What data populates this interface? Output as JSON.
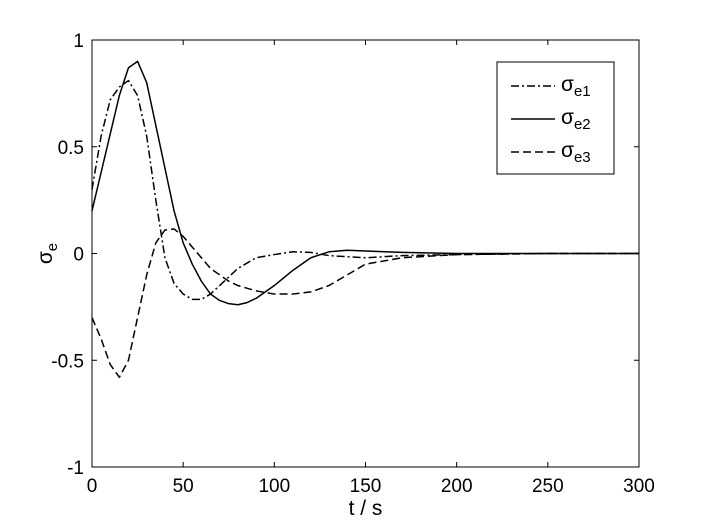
{
  "chart_data": {
    "type": "line",
    "xlabel": "t / s",
    "ylabel": {
      "symbol": "σ",
      "subscript": "e"
    },
    "xlim": [
      0,
      300
    ],
    "ylim": [
      -1,
      1
    ],
    "xticks": [
      0,
      50,
      100,
      150,
      200,
      250,
      300
    ],
    "yticks": [
      -1,
      -0.5,
      0,
      0.5,
      1
    ],
    "xtick_labels": [
      "0",
      "50",
      "100",
      "150",
      "200",
      "250",
      "300"
    ],
    "ytick_labels": [
      "-1",
      "-0.5",
      "0",
      "0.5",
      "1"
    ],
    "grid": false,
    "legend_position": "top-right",
    "series": [
      {
        "name": "σe1",
        "symbol": "σ",
        "subscript": "e1",
        "style": "dashdot",
        "x": [
          0,
          5,
          10,
          15,
          20,
          25,
          30,
          35,
          40,
          45,
          50,
          55,
          60,
          65,
          70,
          75,
          80,
          90,
          100,
          110,
          120,
          130,
          140,
          150,
          170,
          200,
          250,
          300
        ],
        "y": [
          0.3,
          0.55,
          0.72,
          0.78,
          0.81,
          0.74,
          0.55,
          0.25,
          -0.02,
          -0.14,
          -0.19,
          -0.215,
          -0.215,
          -0.19,
          -0.15,
          -0.11,
          -0.07,
          -0.02,
          -0.005,
          0.008,
          0.005,
          -0.01,
          -0.015,
          -0.02,
          -0.01,
          -0.005,
          0.0,
          0.0
        ]
      },
      {
        "name": "σe2",
        "symbol": "σ",
        "subscript": "e2",
        "style": "solid",
        "x": [
          0,
          5,
          10,
          15,
          20,
          25,
          30,
          35,
          40,
          45,
          50,
          55,
          60,
          65,
          70,
          75,
          80,
          85,
          90,
          100,
          110,
          120,
          130,
          140,
          150,
          170,
          200,
          250,
          300
        ],
        "y": [
          0.2,
          0.38,
          0.56,
          0.74,
          0.87,
          0.9,
          0.8,
          0.6,
          0.4,
          0.2,
          0.05,
          -0.05,
          -0.13,
          -0.19,
          -0.22,
          -0.235,
          -0.24,
          -0.23,
          -0.21,
          -0.15,
          -0.08,
          -0.02,
          0.008,
          0.015,
          0.012,
          0.005,
          0.0,
          0.0,
          0.0
        ]
      },
      {
        "name": "σe3",
        "symbol": "σ",
        "subscript": "e3",
        "style": "dashed",
        "x": [
          0,
          5,
          10,
          15,
          20,
          25,
          30,
          35,
          40,
          45,
          50,
          55,
          60,
          65,
          70,
          75,
          80,
          90,
          100,
          110,
          120,
          130,
          140,
          150,
          170,
          200,
          250,
          300
        ],
        "y": [
          -0.3,
          -0.4,
          -0.52,
          -0.58,
          -0.5,
          -0.3,
          -0.1,
          0.05,
          0.11,
          0.115,
          0.08,
          0.03,
          -0.02,
          -0.07,
          -0.1,
          -0.13,
          -0.15,
          -0.175,
          -0.19,
          -0.19,
          -0.18,
          -0.15,
          -0.1,
          -0.05,
          -0.02,
          -0.005,
          0.0,
          0.0
        ]
      }
    ]
  }
}
